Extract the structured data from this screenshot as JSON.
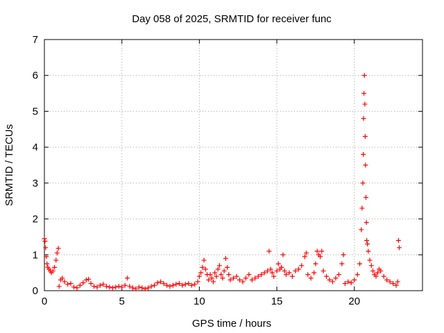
{
  "chart_data": {
    "type": "scatter",
    "title": "Day 058 of 2025, SRMTID for receiver func",
    "xlabel": "GPS time / hours",
    "ylabel": "SRMTID / TECUs",
    "xlim": [
      0,
      24.4
    ],
    "ylim": [
      0,
      7
    ],
    "x_ticks": [
      0,
      5,
      10,
      15,
      20
    ],
    "y_ticks": [
      0,
      1,
      2,
      3,
      4,
      5,
      6,
      7
    ],
    "grid": true,
    "marker": "+",
    "series": [
      {
        "name": "SRMTID",
        "color": "#ff0000",
        "points": [
          [
            0.0,
            1.45
          ],
          [
            0.04,
            1.38
          ],
          [
            0.08,
            1.2
          ],
          [
            0.12,
            0.95
          ],
          [
            0.17,
            0.75
          ],
          [
            0.22,
            0.65
          ],
          [
            0.3,
            0.6
          ],
          [
            0.38,
            0.55
          ],
          [
            0.45,
            0.5
          ],
          [
            0.55,
            0.55
          ],
          [
            0.65,
            0.65
          ],
          [
            0.75,
            0.85
          ],
          [
            0.82,
            1.05
          ],
          [
            0.9,
            1.18
          ],
          [
            0.95,
            0.12
          ],
          [
            1.05,
            0.3
          ],
          [
            1.15,
            0.35
          ],
          [
            1.3,
            0.25
          ],
          [
            1.5,
            0.18
          ],
          [
            1.7,
            0.2
          ],
          [
            1.9,
            0.1
          ],
          [
            2.1,
            0.08
          ],
          [
            2.3,
            0.15
          ],
          [
            2.5,
            0.22
          ],
          [
            2.7,
            0.3
          ],
          [
            2.85,
            0.32
          ],
          [
            3.0,
            0.2
          ],
          [
            3.2,
            0.12
          ],
          [
            3.4,
            0.1
          ],
          [
            3.6,
            0.15
          ],
          [
            3.8,
            0.18
          ],
          [
            4.0,
            0.12
          ],
          [
            4.2,
            0.1
          ],
          [
            4.4,
            0.08
          ],
          [
            4.6,
            0.1
          ],
          [
            4.8,
            0.12
          ],
          [
            5.0,
            0.1
          ],
          [
            5.2,
            0.15
          ],
          [
            5.35,
            0.35
          ],
          [
            5.5,
            0.12
          ],
          [
            5.7,
            0.08
          ],
          [
            5.9,
            0.05
          ],
          [
            6.1,
            0.1
          ],
          [
            6.3,
            0.08
          ],
          [
            6.5,
            0.05
          ],
          [
            6.7,
            0.08
          ],
          [
            6.9,
            0.12
          ],
          [
            7.1,
            0.15
          ],
          [
            7.3,
            0.22
          ],
          [
            7.5,
            0.25
          ],
          [
            7.7,
            0.2
          ],
          [
            7.9,
            0.15
          ],
          [
            8.1,
            0.12
          ],
          [
            8.3,
            0.15
          ],
          [
            8.5,
            0.18
          ],
          [
            8.7,
            0.2
          ],
          [
            8.9,
            0.15
          ],
          [
            9.1,
            0.18
          ],
          [
            9.3,
            0.2
          ],
          [
            9.5,
            0.15
          ],
          [
            9.7,
            0.18
          ],
          [
            9.9,
            0.25
          ],
          [
            10.0,
            0.4
          ],
          [
            10.1,
            0.5
          ],
          [
            10.2,
            0.65
          ],
          [
            10.3,
            0.85
          ],
          [
            10.4,
            0.6
          ],
          [
            10.5,
            0.45
          ],
          [
            10.6,
            0.3
          ],
          [
            10.7,
            0.45
          ],
          [
            10.8,
            0.35
          ],
          [
            10.9,
            0.25
          ],
          [
            11.0,
            0.5
          ],
          [
            11.1,
            0.4
          ],
          [
            11.2,
            0.6
          ],
          [
            11.3,
            0.7
          ],
          [
            11.4,
            0.45
          ],
          [
            11.5,
            0.35
          ],
          [
            11.6,
            0.55
          ],
          [
            11.7,
            0.9
          ],
          [
            11.8,
            0.65
          ],
          [
            11.9,
            0.45
          ],
          [
            12.0,
            0.3
          ],
          [
            12.2,
            0.35
          ],
          [
            12.4,
            0.4
          ],
          [
            12.6,
            0.3
          ],
          [
            12.8,
            0.25
          ],
          [
            13.0,
            0.35
          ],
          [
            13.2,
            0.45
          ],
          [
            13.4,
            0.3
          ],
          [
            13.6,
            0.35
          ],
          [
            13.8,
            0.4
          ],
          [
            14.0,
            0.45
          ],
          [
            14.2,
            0.5
          ],
          [
            14.4,
            0.55
          ],
          [
            14.5,
            1.1
          ],
          [
            14.6,
            0.6
          ],
          [
            14.7,
            0.5
          ],
          [
            14.8,
            0.4
          ],
          [
            15.0,
            0.55
          ],
          [
            15.1,
            0.75
          ],
          [
            15.2,
            0.6
          ],
          [
            15.3,
            0.65
          ],
          [
            15.4,
            1.0
          ],
          [
            15.5,
            0.55
          ],
          [
            15.6,
            0.45
          ],
          [
            15.8,
            0.5
          ],
          [
            16.0,
            0.4
          ],
          [
            16.2,
            0.55
          ],
          [
            16.4,
            0.6
          ],
          [
            16.6,
            0.7
          ],
          [
            16.8,
            0.95
          ],
          [
            16.9,
            1.05
          ],
          [
            17.0,
            0.45
          ],
          [
            17.2,
            0.35
          ],
          [
            17.4,
            0.5
          ],
          [
            17.5,
            0.75
          ],
          [
            17.6,
            1.1
          ],
          [
            17.7,
            1.0
          ],
          [
            17.8,
            0.95
          ],
          [
            17.9,
            1.1
          ],
          [
            18.0,
            0.55
          ],
          [
            18.2,
            0.4
          ],
          [
            18.4,
            0.3
          ],
          [
            18.6,
            0.25
          ],
          [
            18.8,
            0.35
          ],
          [
            19.0,
            0.45
          ],
          [
            19.2,
            0.75
          ],
          [
            19.3,
            1.0
          ],
          [
            19.4,
            0.2
          ],
          [
            19.6,
            0.25
          ],
          [
            19.8,
            0.22
          ],
          [
            20.0,
            0.3
          ],
          [
            20.2,
            0.45
          ],
          [
            20.35,
            0.75
          ],
          [
            20.45,
            1.7
          ],
          [
            20.5,
            2.3
          ],
          [
            20.55,
            3.0
          ],
          [
            20.58,
            3.8
          ],
          [
            20.6,
            4.8
          ],
          [
            20.62,
            5.5
          ],
          [
            20.65,
            6.0
          ],
          [
            20.68,
            5.2
          ],
          [
            20.7,
            4.3
          ],
          [
            20.72,
            3.5
          ],
          [
            20.75,
            2.6
          ],
          [
            20.78,
            1.9
          ],
          [
            20.8,
            1.4
          ],
          [
            20.85,
            1.3
          ],
          [
            20.9,
            1.1
          ],
          [
            21.0,
            0.85
          ],
          [
            21.1,
            0.7
          ],
          [
            21.2,
            0.55
          ],
          [
            21.3,
            0.45
          ],
          [
            21.4,
            0.4
          ],
          [
            21.5,
            0.5
          ],
          [
            21.6,
            0.6
          ],
          [
            21.7,
            0.55
          ],
          [
            21.9,
            0.4
          ],
          [
            22.1,
            0.3
          ],
          [
            22.3,
            0.25
          ],
          [
            22.5,
            0.2
          ],
          [
            22.7,
            0.15
          ],
          [
            22.8,
            0.25
          ],
          [
            22.85,
            1.4
          ],
          [
            22.9,
            1.2
          ]
        ]
      }
    ]
  }
}
